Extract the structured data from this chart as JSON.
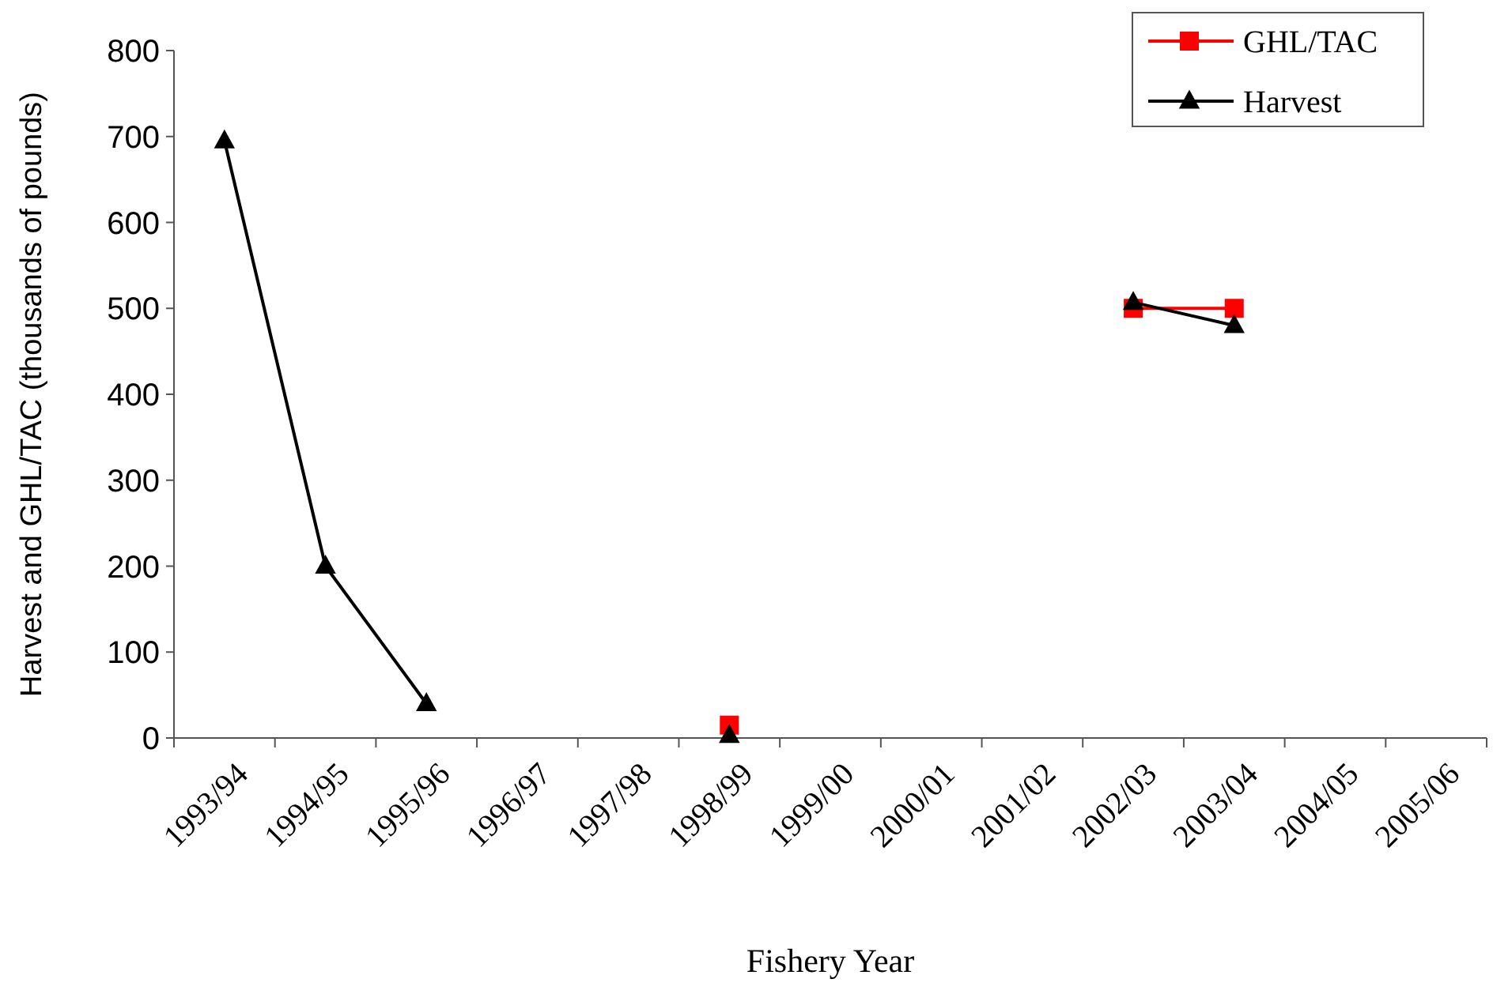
{
  "chart_data": {
    "type": "line",
    "xlabel": "Fishery Year",
    "ylabel": "Harvest and GHL/TAC (thousands of pounds)",
    "categories": [
      "1993/94",
      "1994/95",
      "1995/96",
      "1996/97",
      "1997/98",
      "1998/99",
      "1999/00",
      "2000/01",
      "2001/02",
      "2002/03",
      "2003/04",
      "2004/05",
      "2005/06"
    ],
    "series": [
      {
        "name": "GHL/TAC",
        "color": "#ff0000",
        "marker": "square",
        "values": [
          null,
          null,
          null,
          null,
          null,
          15,
          null,
          null,
          null,
          500,
          500,
          null,
          null
        ]
      },
      {
        "name": "Harvest",
        "color": "#000000",
        "marker": "triangle",
        "values": [
          695,
          200,
          40,
          null,
          null,
          3,
          null,
          null,
          null,
          507,
          480,
          null,
          null
        ]
      }
    ],
    "ylim": [
      0,
      800
    ],
    "yticks": [
      0,
      100,
      200,
      300,
      400,
      500,
      600,
      700,
      800
    ],
    "grid": false,
    "legend": "top right"
  }
}
